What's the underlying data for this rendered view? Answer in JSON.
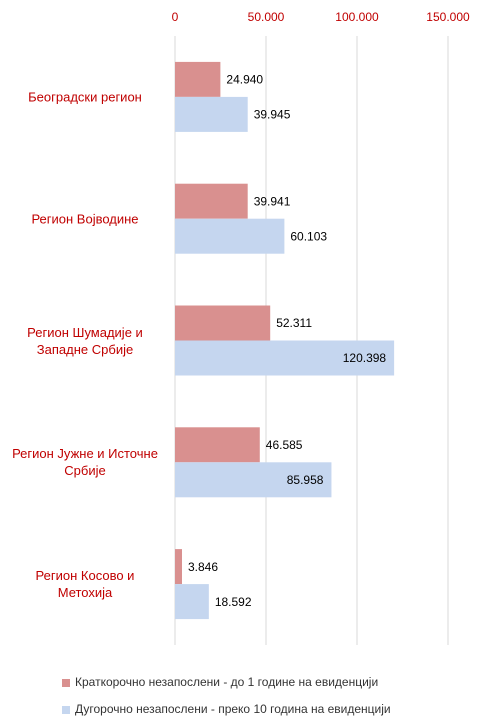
{
  "chart_data": {
    "type": "bar",
    "orientation": "horizontal",
    "categories": [
      "Београдски регион",
      "Регион Војводине",
      "Регион Шумадије и\nЗападне Србије",
      "Регион Јужне и Источне\nСрбије",
      "Регион Косово и\nМетохија"
    ],
    "series": [
      {
        "name": "Краткорочно незапослени - до 1 године на евиденцији",
        "color": "#d9908f",
        "values": [
          24940,
          39941,
          52311,
          46585,
          3846
        ],
        "value_labels": [
          "24.940",
          "39.941",
          "52.311",
          "46.585",
          "3.846"
        ]
      },
      {
        "name": "Дугорочно незапослени - преко 10 година на евиденцији",
        "color": "#c5d6ef",
        "values": [
          39945,
          60103,
          120398,
          85958,
          18592
        ],
        "value_labels": [
          "39.945",
          "60.103",
          "120.398",
          "85.958",
          "18.592"
        ]
      }
    ],
    "xlim": [
      0,
      150000
    ],
    "xticks": [
      0,
      {
        "value": 50000,
        "label": "50.000"
      },
      {
        "value": 100000,
        "label": "100.000"
      },
      {
        "value": 150000,
        "label": "150.000"
      }
    ],
    "grid": true,
    "legend": "bottom"
  }
}
